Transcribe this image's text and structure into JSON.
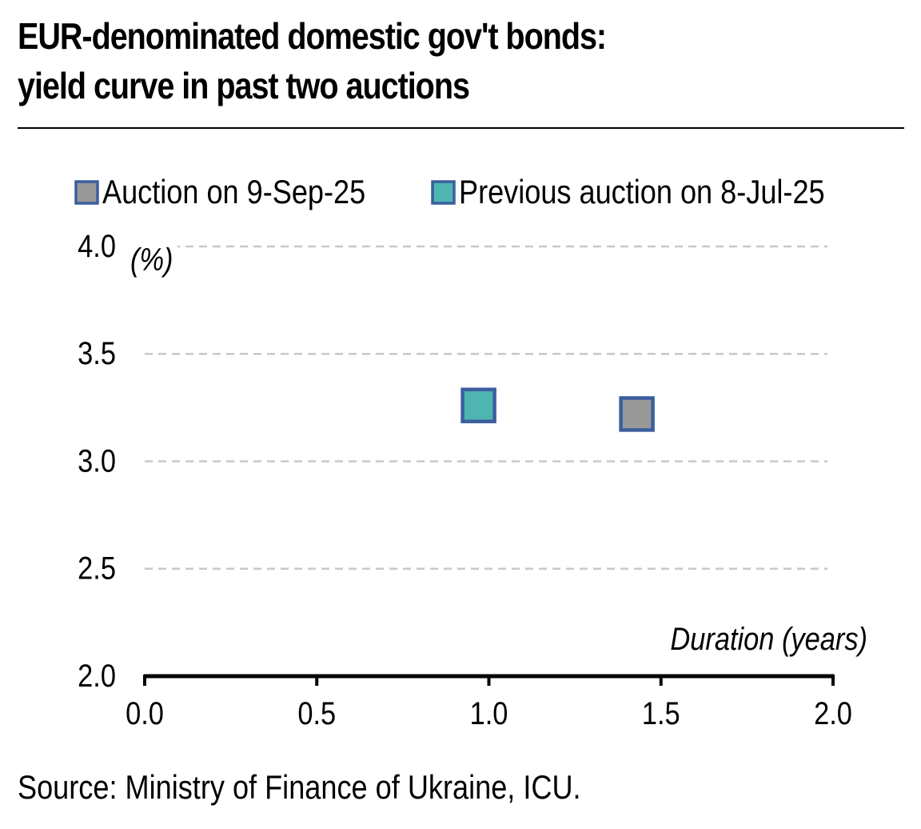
{
  "title_line1": "EUR-denominated domestic gov't bonds:",
  "title_line2": "yield curve in past two auctions",
  "source": "Source: Ministry of Finance of Ukraine, ICU.",
  "colors": {
    "auction_fill": "#999999",
    "previous_fill": "#4fb5b0",
    "marker_border": "#3b5e9e",
    "grid": "#c8c8c8",
    "axis": "#000000"
  },
  "chart_data": {
    "type": "scatter",
    "title": "EUR-denominated domestic gov't bonds: yield curve in past two auctions",
    "ylabel": "(%)",
    "xlabel": "Duration (years)",
    "xlim": [
      0.0,
      2.0
    ],
    "ylim": [
      2.0,
      4.0
    ],
    "x_ticks": [
      "0.0",
      "0.5",
      "1.0",
      "1.5",
      "2.0"
    ],
    "y_ticks": [
      "2.0",
      "2.5",
      "3.0",
      "3.5",
      "4.0"
    ],
    "grid": true,
    "legend_position": "top",
    "series": [
      {
        "name": "Auction on 9-Sep-25",
        "color": "#999999",
        "points": [
          {
            "x": 1.43,
            "y": 3.22
          }
        ]
      },
      {
        "name": "Previous auction on 8-Jul-25",
        "color": "#4fb5b0",
        "points": [
          {
            "x": 0.97,
            "y": 3.26
          }
        ]
      }
    ]
  }
}
